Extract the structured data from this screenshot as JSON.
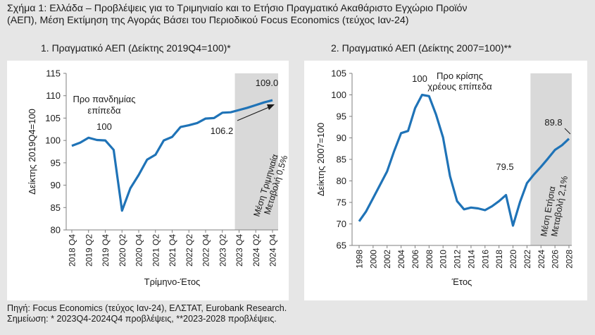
{
  "header": {
    "title_line1": "Σχήμα 1: Ελλάδα – Προβλέψεις για το Τριμηνιαίο και το Ετήσιο Πραγματικό Ακαθάριστο Εγχώριο Προϊόν",
    "title_line2": "(ΑΕΠ), Μέση Εκτίμηση της Αγοράς Βάσει του Περιοδικού Focus Economics (τεύχος Ιαν-24)"
  },
  "footer": {
    "source": "Πηγή: Focus Economics (τεύχος Ιαν-24), ΕΛΣΤΑΤ, Eurobank Research.",
    "note": "Σημείωση: * 2023Q4-2024Q4 προβλέψεις, **2023-2028 προβλέψεις."
  },
  "colors": {
    "line": "#1f73b7",
    "forecast_shade": "#d9d9d9",
    "panel_bg": "#ffffff",
    "page_bg": "#e6e6e6"
  },
  "chart_data": [
    {
      "type": "line",
      "title": "1. Πραγματικό ΑΕΠ (Δείκτης 2019Q4=100)*",
      "xlabel": "Τρίμηνο-Έτος",
      "ylabel": "Δείκτης 2019Q4=100",
      "ylim": [
        80,
        115
      ],
      "yticks": [
        80,
        85,
        90,
        95,
        100,
        105,
        110,
        115
      ],
      "categories": [
        "2018 Q4",
        "2019 Q1",
        "2019 Q2",
        "2019 Q3",
        "2019 Q4",
        "2020 Q1",
        "2020 Q2",
        "2020 Q3",
        "2020 Q4",
        "2021 Q1",
        "2021 Q2",
        "2021 Q3",
        "2021 Q4",
        "2022 Q1",
        "2022 Q2",
        "2022 Q3",
        "2022 Q4",
        "2023 Q1",
        "2023 Q2",
        "2023 Q3",
        "2023 Q4",
        "2024 Q1",
        "2024 Q2",
        "2024 Q3",
        "2024 Q4"
      ],
      "tick_labels": [
        "2018 Q4",
        "2019 Q2",
        "2019 Q4",
        "2020 Q2",
        "2020 Q4",
        "2021 Q2",
        "2021 Q4",
        "2022 Q2",
        "2022 Q4",
        "2023 Q2",
        "2023 Q4",
        "2024 Q2",
        "2024 Q4"
      ],
      "values": [
        98.8,
        99.5,
        100.6,
        100.1,
        100.0,
        97.9,
        84.3,
        89.3,
        92.3,
        95.7,
        96.8,
        100.0,
        100.8,
        103.0,
        103.4,
        103.9,
        104.9,
        105.0,
        106.2,
        106.3,
        106.8,
        107.3,
        107.9,
        108.5,
        109.0
      ],
      "forecast_start": "2023 Q4",
      "annotations": {
        "pre_pandemic_line1": "Προ πανδημίας",
        "pre_pandemic_line2": "επίπεδα",
        "label_100": "100",
        "label_106": "106.2",
        "label_109": "109.0",
        "forecast_line1": "Μέση Τριμηνιαία",
        "forecast_line2": "Μεταβολή 0,5%"
      }
    },
    {
      "type": "line",
      "title": "2. Πραγματικό ΑΕΠ (Δείκτης 2007=100)**",
      "xlabel": "Έτος",
      "ylabel": "Δείκτης 2007=100",
      "ylim": [
        65,
        105
      ],
      "yticks": [
        65,
        70,
        75,
        80,
        85,
        90,
        95,
        100,
        105
      ],
      "x": [
        1998,
        1999,
        2000,
        2001,
        2002,
        2003,
        2004,
        2005,
        2006,
        2007,
        2008,
        2009,
        2010,
        2011,
        2012,
        2013,
        2014,
        2015,
        2016,
        2017,
        2018,
        2019,
        2020,
        2021,
        2022,
        2023,
        2024,
        2025,
        2026,
        2027,
        2028
      ],
      "tick_labels": [
        1998,
        2000,
        2002,
        2004,
        2006,
        2008,
        2010,
        2012,
        2014,
        2016,
        2018,
        2020,
        2022,
        2024,
        2026,
        2028
      ],
      "values": [
        70.6,
        72.9,
        76.0,
        79.1,
        82.2,
        86.9,
        91.1,
        91.6,
        96.9,
        100.0,
        99.7,
        95.4,
        90.1,
        81.1,
        75.3,
        73.4,
        73.8,
        73.6,
        73.2,
        74.1,
        75.3,
        76.7,
        69.6,
        75.1,
        79.5,
        81.5,
        83.3,
        85.2,
        87.2,
        88.3,
        89.8
      ],
      "forecast_start": 2023,
      "annotations": {
        "label_100": "100",
        "pre_crisis_line1": "Προ κρίσης",
        "pre_crisis_line2": "χρέους επίπεδα",
        "label_79": "79.5",
        "label_89": "89.8",
        "forecast_line1": "Μέση Ετήσια",
        "forecast_line2": "Μεταβολή 2,1%"
      }
    }
  ]
}
